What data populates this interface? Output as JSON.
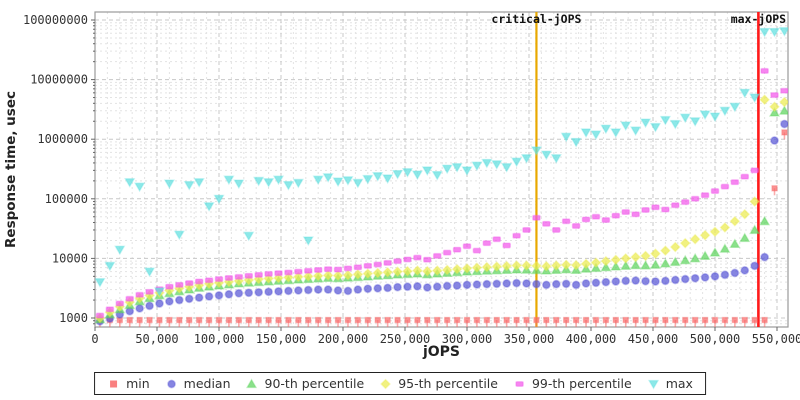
{
  "chart_data": {
    "type": "scatter",
    "title": "",
    "xlabel": "jOPS",
    "ylabel": "Response time, usec",
    "grid": true,
    "legend_position": "bottom",
    "x_axis": {
      "min": 0,
      "max": 559000,
      "major_tick_step": 50000,
      "minor_grid_step": 10000,
      "tick_values": [
        0,
        50000,
        100000,
        150000,
        200000,
        250000,
        300000,
        350000,
        400000,
        450000,
        500000,
        550000
      ],
      "tick_labels": [
        "0",
        "50,000",
        "100,000",
        "150,000",
        "200,000",
        "250,000",
        "300,000",
        "350,000",
        "400,000",
        "450,000",
        "500,000",
        "550,000"
      ]
    },
    "y_axis": {
      "scale": "log",
      "min": 707,
      "max": 136000000,
      "tick_values": [
        1000,
        10000,
        100000,
        1000000,
        10000000,
        100000000
      ],
      "tick_labels": [
        "1000",
        "10000",
        "100000",
        "1000000",
        "10000000",
        "100000000"
      ]
    },
    "annotations": [
      {
        "label": "critical-jOPS",
        "x": 356000,
        "color": "#e8a800"
      },
      {
        "label": "max-jOPS",
        "x": 535000,
        "color": "#ff1a1a"
      }
    ],
    "x": [
      4000,
      12000,
      20000,
      28000,
      36000,
      44000,
      52000,
      60000,
      68000,
      76000,
      84000,
      92000,
      100000,
      108000,
      116000,
      124000,
      132000,
      140000,
      148000,
      156000,
      164000,
      172000,
      180000,
      188000,
      196000,
      204000,
      212000,
      220000,
      228000,
      236000,
      244000,
      252000,
      260000,
      268000,
      276000,
      284000,
      292000,
      300000,
      308000,
      316000,
      324000,
      332000,
      340000,
      348000,
      356000,
      364000,
      372000,
      380000,
      388000,
      396000,
      404000,
      412000,
      420000,
      428000,
      436000,
      444000,
      452000,
      460000,
      468000,
      476000,
      484000,
      492000,
      500000,
      508000,
      516000,
      524000,
      532000,
      540000,
      548000,
      556000
    ],
    "series": [
      {
        "name": "min",
        "marker": "square-stem",
        "color": "#f86a6a",
        "values": [
          925,
          925,
          925,
          925,
          925,
          925,
          925,
          925,
          925,
          925,
          925,
          925,
          925,
          925,
          925,
          925,
          925,
          925,
          925,
          925,
          925,
          925,
          925,
          925,
          925,
          925,
          925,
          925,
          925,
          925,
          925,
          925,
          925,
          925,
          925,
          925,
          925,
          925,
          925,
          925,
          925,
          925,
          925,
          925,
          925,
          925,
          925,
          925,
          925,
          925,
          925,
          925,
          925,
          925,
          925,
          925,
          925,
          925,
          925,
          925,
          925,
          925,
          925,
          925,
          925,
          925,
          925,
          925,
          150000,
          1300000
        ]
      },
      {
        "name": "median",
        "marker": "circle",
        "color": "#5856d6",
        "values": [
          880,
          980,
          1150,
          1300,
          1450,
          1600,
          1750,
          1900,
          2000,
          2100,
          2200,
          2300,
          2400,
          2500,
          2600,
          2650,
          2700,
          2750,
          2800,
          2850,
          2900,
          2950,
          3000,
          3000,
          2900,
          2850,
          3000,
          3100,
          3150,
          3200,
          3300,
          3350,
          3400,
          3250,
          3350,
          3450,
          3500,
          3600,
          3650,
          3700,
          3750,
          3800,
          3850,
          3800,
          3700,
          3600,
          3700,
          3750,
          3600,
          3800,
          3900,
          4000,
          4100,
          4200,
          4250,
          4150,
          4100,
          4200,
          4350,
          4500,
          4650,
          4800,
          5000,
          5300,
          5700,
          6300,
          7500,
          10500,
          950000,
          1800000
        ]
      },
      {
        "name": "90-th percentile",
        "marker": "triangle-up",
        "color": "#5ed45e",
        "values": [
          950,
          1150,
          1400,
          1650,
          1900,
          2150,
          2400,
          2600,
          2800,
          3000,
          3200,
          3350,
          3500,
          3650,
          3800,
          3900,
          4000,
          4100,
          4200,
          4300,
          4400,
          4500,
          4600,
          4700,
          4650,
          4750,
          4850,
          4950,
          5100,
          5200,
          5350,
          5450,
          5550,
          5400,
          5550,
          5700,
          5850,
          6000,
          6100,
          6200,
          6300,
          6400,
          6500,
          6450,
          6350,
          6250,
          6400,
          6550,
          6400,
          6700,
          6900,
          7100,
          7300,
          7500,
          7700,
          7600,
          7800,
          8200,
          8700,
          9300,
          10000,
          11000,
          12500,
          14500,
          17500,
          22000,
          30000,
          42000,
          2800000,
          3000000
        ]
      },
      {
        "name": "95-th percentile",
        "marker": "diamond",
        "color": "#ecec50",
        "values": [
          1000,
          1250,
          1550,
          1850,
          2150,
          2400,
          2650,
          2900,
          3150,
          3350,
          3550,
          3750,
          3900,
          4050,
          4200,
          4350,
          4500,
          4600,
          4700,
          4800,
          4900,
          5000,
          5100,
          5200,
          5150,
          5250,
          5400,
          5550,
          5700,
          5850,
          6000,
          6100,
          6250,
          6100,
          6250,
          6400,
          6600,
          6800,
          7000,
          7150,
          7300,
          7450,
          7600,
          7600,
          7500,
          7400,
          7600,
          7800,
          7700,
          8100,
          8500,
          9000,
          9500,
          10000,
          10500,
          11000,
          12000,
          13500,
          15500,
          18000,
          21000,
          24500,
          28000,
          33000,
          42000,
          55000,
          90000,
          4600000,
          3500000,
          4200000
        ]
      },
      {
        "name": "99-th percentile",
        "marker": "hbar",
        "color": "#f258ea",
        "values": [
          1100,
          1400,
          1750,
          2100,
          2450,
          2750,
          3050,
          3350,
          3600,
          3850,
          4100,
          4300,
          4500,
          4700,
          4900,
          5100,
          5300,
          5500,
          5650,
          5800,
          6000,
          6200,
          6400,
          6600,
          6500,
          6800,
          7100,
          7500,
          7900,
          8400,
          9000,
          9600,
          10300,
          9500,
          11000,
          12500,
          14000,
          16000,
          13500,
          18000,
          21000,
          16500,
          24000,
          30000,
          48000,
          38000,
          30000,
          42000,
          35000,
          45000,
          50000,
          44000,
          52000,
          60000,
          55000,
          65000,
          72000,
          66000,
          78000,
          88000,
          100000,
          115000,
          135000,
          160000,
          190000,
          235000,
          300000,
          14000000,
          5500000,
          6500000
        ]
      },
      {
        "name": "max",
        "marker": "triangle-down",
        "color": "#5fdfdf",
        "values": [
          4000,
          7500,
          14000,
          190000,
          160000,
          6000,
          2800,
          180000,
          25000,
          170000,
          190000,
          75000,
          100000,
          210000,
          180000,
          24000,
          200000,
          190000,
          210000,
          170000,
          185000,
          20000,
          210000,
          230000,
          195000,
          205000,
          185000,
          215000,
          240000,
          220000,
          260000,
          280000,
          255000,
          300000,
          250000,
          320000,
          340000,
          300000,
          360000,
          400000,
          380000,
          340000,
          420000,
          480000,
          650000,
          550000,
          480000,
          1100000,
          900000,
          1300000,
          1200000,
          1500000,
          1300000,
          1700000,
          1400000,
          1900000,
          1600000,
          2100000,
          1800000,
          2300000,
          2000000,
          2600000,
          2400000,
          3000000,
          3500000,
          6000000,
          5000000,
          63000000,
          63000000,
          65000000
        ]
      }
    ]
  },
  "styles": {
    "grid_major_color": "#c8c8c8",
    "grid_minor_color": "#e3e3e3",
    "border_color": "#9a9a9a",
    "axis_color": "#666666",
    "tick_text_color": "#333333",
    "axis_title_color": "#222222",
    "annotation_text_color": "#111111"
  }
}
